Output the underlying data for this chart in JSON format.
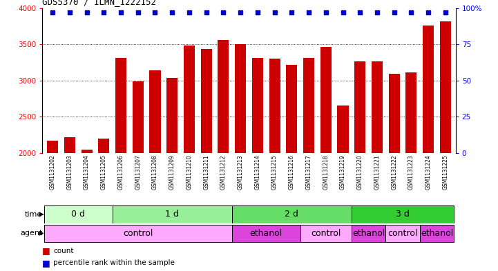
{
  "title": "GDS5370 / ILMN_1222152",
  "samples": [
    "GSM1131202",
    "GSM1131203",
    "GSM1131204",
    "GSM1131205",
    "GSM1131206",
    "GSM1131207",
    "GSM1131208",
    "GSM1131209",
    "GSM1131210",
    "GSM1131211",
    "GSM1131212",
    "GSM1131213",
    "GSM1131214",
    "GSM1131215",
    "GSM1131216",
    "GSM1131217",
    "GSM1131218",
    "GSM1131219",
    "GSM1131220",
    "GSM1131221",
    "GSM1131222",
    "GSM1131223",
    "GSM1131224",
    "GSM1131225"
  ],
  "counts": [
    2175,
    2215,
    2050,
    2200,
    3310,
    2985,
    3140,
    3040,
    3480,
    3440,
    3560,
    3500,
    3310,
    3300,
    3220,
    3310,
    3470,
    2660,
    3270,
    3270,
    3095,
    3115,
    3760,
    3820
  ],
  "percentile_ranks": [
    97,
    97,
    97,
    97,
    97,
    97,
    97,
    97,
    97,
    97,
    97,
    97,
    97,
    97,
    97,
    97,
    97,
    97,
    97,
    97,
    97,
    97,
    97,
    97
  ],
  "bar_color": "#cc0000",
  "dot_color": "#0000cc",
  "ylim_left": [
    2000,
    4000
  ],
  "ylim_right": [
    0,
    100
  ],
  "yticks_left": [
    2000,
    2500,
    3000,
    3500,
    4000
  ],
  "yticks_right": [
    0,
    25,
    50,
    75,
    100
  ],
  "time_groups": [
    {
      "label": "0 d",
      "start": 0,
      "end": 4,
      "color": "#ccffcc"
    },
    {
      "label": "1 d",
      "start": 4,
      "end": 11,
      "color": "#99ee99"
    },
    {
      "label": "2 d",
      "start": 11,
      "end": 18,
      "color": "#66dd66"
    },
    {
      "label": "3 d",
      "start": 18,
      "end": 24,
      "color": "#33cc33"
    }
  ],
  "agent_groups": [
    {
      "label": "control",
      "start": 0,
      "end": 11,
      "color": "#ffaaff"
    },
    {
      "label": "ethanol",
      "start": 11,
      "end": 15,
      "color": "#ee44ee"
    },
    {
      "label": "control",
      "start": 15,
      "end": 18,
      "color": "#ffaaff"
    },
    {
      "label": "ethanol",
      "start": 18,
      "end": 20,
      "color": "#ee44ee"
    },
    {
      "label": "control",
      "start": 20,
      "end": 22,
      "color": "#ffaaff"
    },
    {
      "label": "ethanol",
      "start": 22,
      "end": 24,
      "color": "#ee44ee"
    }
  ],
  "chart_bg": "#ffffff",
  "label_bg": "#d8d8d8"
}
